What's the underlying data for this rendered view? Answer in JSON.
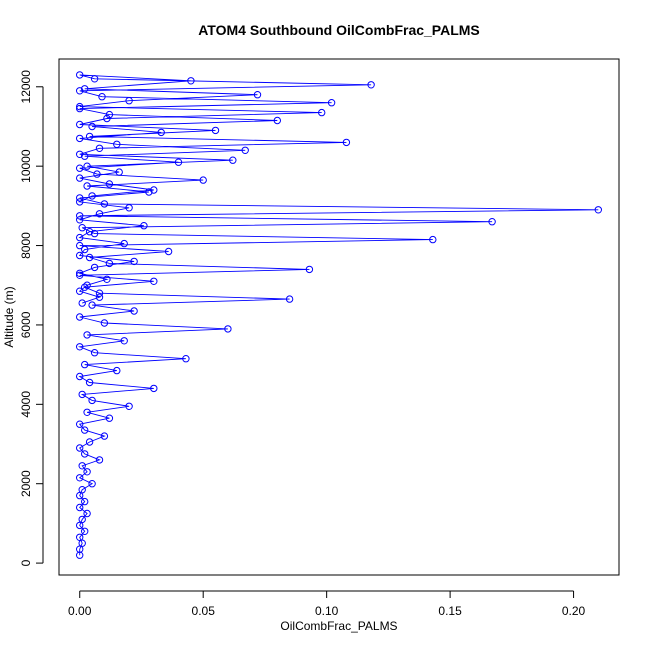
{
  "chart_data": {
    "type": "line",
    "title": "ATOM4 Southbound OilCombFrac_PALMS",
    "xlabel": "OilCombFrac_PALMS",
    "ylabel": "Altitude (m)",
    "xlim": [
      -0.0084,
      0.2184
    ],
    "ylim": [
      -300,
      12700
    ],
    "xticks": [
      0.0,
      0.05,
      0.1,
      0.15,
      0.2
    ],
    "xtick_labels": [
      "0.00",
      "0.05",
      "0.10",
      "0.15",
      "0.20"
    ],
    "yticks": [
      0,
      2000,
      4000,
      6000,
      8000,
      10000,
      12000
    ],
    "ytick_labels": [
      "0",
      "2000",
      "4000",
      "6000",
      "8000",
      "10000",
      "12000"
    ],
    "grid": false,
    "legend": "none",
    "colors": {
      "series": "#0000ff",
      "axes": "#000000",
      "background": "#ffffff"
    },
    "series": [
      {
        "marker": "open-circle",
        "x": [
          0.0,
          0.0,
          0.001,
          0.0,
          0.002,
          0.0,
          0.001,
          0.003,
          0.0,
          0.002,
          0.0,
          0.001,
          0.005,
          0.0,
          0.003,
          0.001,
          0.008,
          0.002,
          0.0,
          0.004,
          0.01,
          0.002,
          0.0,
          0.012,
          0.003,
          0.02,
          0.005,
          0.001,
          0.03,
          0.004,
          0.0,
          0.015,
          0.002,
          0.043,
          0.006,
          0.0,
          0.018,
          0.003,
          0.06,
          0.01,
          0.0,
          0.022,
          0.005,
          0.085,
          0.008,
          0.002,
          0.03,
          0.0,
          0.093,
          0.012,
          0.004,
          0.036,
          0.0,
          0.143,
          0.006,
          0.001,
          0.167,
          0.0,
          0.21,
          0.01,
          0.0,
          0.028,
          0.003,
          0.05,
          0.007,
          0.0,
          0.04,
          0.002,
          0.067,
          0.015,
          0.0,
          0.033,
          0.005,
          0.08,
          0.012,
          0.0,
          0.102,
          0.009,
          0.0,
          0.118,
          0.006,
          0.0,
          0.045,
          0.002,
          0.072,
          0.02,
          0.0,
          0.098,
          0.011,
          0.0,
          0.055,
          0.004,
          0.108,
          0.008,
          0.0,
          0.062,
          0.003,
          0.016,
          0.0,
          0.012,
          0.03,
          0.005,
          0.0,
          0.02,
          0.008,
          0.0,
          0.026,
          0.004,
          0.0,
          0.018,
          0.002,
          0.0,
          0.022,
          0.006,
          0.0,
          0.011,
          0.003,
          0.0,
          0.008,
          0.001
        ],
        "y": [
          200,
          350,
          500,
          650,
          800,
          950,
          1100,
          1250,
          1400,
          1550,
          1700,
          1850,
          2000,
          2150,
          2300,
          2450,
          2600,
          2750,
          2900,
          3050,
          3200,
          3350,
          3500,
          3650,
          3800,
          3950,
          4100,
          4250,
          4400,
          4550,
          4700,
          4850,
          5000,
          5150,
          5300,
          5450,
          5600,
          5750,
          5900,
          6050,
          6200,
          6350,
          6500,
          6650,
          6800,
          6950,
          7100,
          7250,
          7400,
          7550,
          7700,
          7850,
          8000,
          8150,
          8300,
          8450,
          8600,
          8750,
          8900,
          9050,
          9200,
          9350,
          9500,
          9650,
          9800,
          9950,
          10100,
          10250,
          10400,
          10550,
          10700,
          10850,
          11000,
          11150,
          11300,
          11450,
          11600,
          11750,
          11900,
          12050,
          12200,
          12300,
          12150,
          11950,
          11800,
          11650,
          11500,
          11350,
          11200,
          11050,
          10900,
          10750,
          10600,
          10450,
          10300,
          10150,
          10000,
          9850,
          9700,
          9550,
          9400,
          9250,
          9100,
          8950,
          8800,
          8650,
          8500,
          8350,
          8200,
          8050,
          7900,
          7750,
          7600,
          7450,
          7300,
          7150,
          7000,
          6850,
          6700,
          6550
        ]
      }
    ]
  }
}
